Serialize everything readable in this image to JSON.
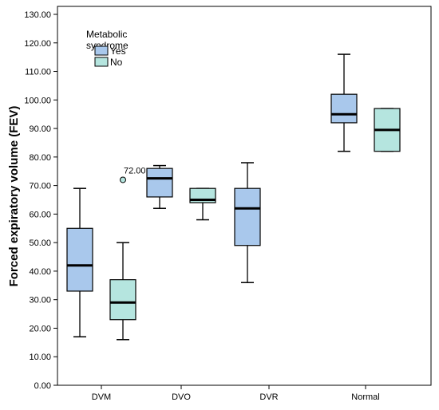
{
  "chart_data": {
    "type": "boxplot",
    "ylabel": "Forced expiratory volume (FEV)",
    "ylim": [
      0,
      130
    ],
    "yticks": [
      "0.00",
      "10.00",
      "20.00",
      "30.00",
      "40.00",
      "50.00",
      "60.00",
      "70.00",
      "80.00",
      "90.00",
      "100.00",
      "110.00",
      "120.00",
      "130.00"
    ],
    "categories": [
      "DVM",
      "DVO",
      "DVR",
      "Normal"
    ],
    "legend": {
      "title_lines": [
        "Metabolic",
        "syndrome"
      ],
      "placement": "top-left"
    },
    "series": [
      {
        "name": "Yes",
        "color": "#a9c8ec",
        "boxes": [
          {
            "category": "DVM",
            "min": 17,
            "q1": 33,
            "median": 42,
            "q3": 55,
            "max": 69
          },
          {
            "category": "DVO",
            "min": 62,
            "q1": 66,
            "median": 72.5,
            "q3": 76,
            "max": 77
          },
          {
            "category": "DVR",
            "min": 36,
            "q1": 49,
            "median": 62,
            "q3": 69,
            "max": 78
          },
          {
            "category": "Normal",
            "min": 82,
            "q1": 92,
            "median": 95,
            "q3": 102,
            "max": 116
          }
        ]
      },
      {
        "name": "No",
        "color": "#b5e5df",
        "boxes": [
          {
            "category": "DVM",
            "min": 16,
            "q1": 23,
            "median": 29,
            "q3": 37,
            "max": 50,
            "outliers": [
              {
                "value": 72,
                "label": "72.00"
              }
            ]
          },
          {
            "category": "DVO",
            "min": 58,
            "q1": 64,
            "median": 65,
            "q3": 69,
            "max": 69
          },
          {
            "category": "Normal",
            "min": 82,
            "q1": 82,
            "median": 89.5,
            "q3": 97,
            "max": 97
          }
        ]
      }
    ]
  }
}
